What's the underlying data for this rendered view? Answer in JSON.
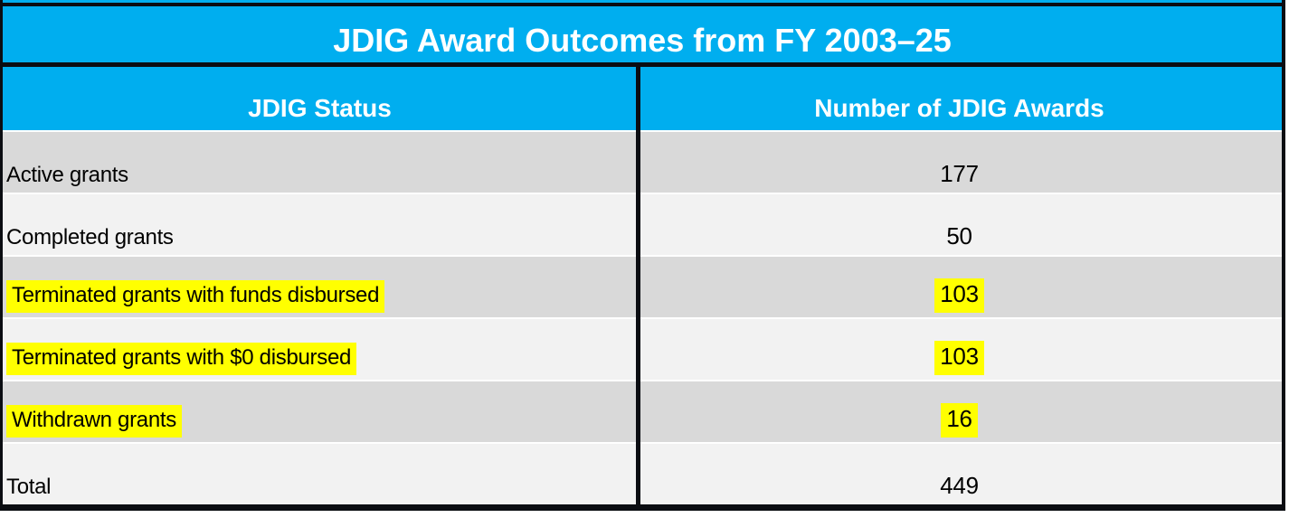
{
  "table": {
    "title": "JDIG Award Outcomes from FY 2003–25",
    "columns": [
      "JDIG Status",
      "Number of JDIG Awards"
    ],
    "rows": [
      {
        "status": "Active grants",
        "count": "177",
        "highlighted": false
      },
      {
        "status": "Completed grants",
        "count": "50",
        "highlighted": false
      },
      {
        "status": "Terminated grants with funds disbursed",
        "count": "103",
        "highlighted": true
      },
      {
        "status": "Terminated grants with $0 disbursed",
        "count": "103",
        "highlighted": true
      },
      {
        "status": "Withdrawn grants",
        "count": "16",
        "highlighted": true
      },
      {
        "status": "Total",
        "count": "449",
        "highlighted": false
      }
    ]
  },
  "colors": {
    "header_blue": "#00AEEF",
    "row_dark": "#D9D9D9",
    "row_light": "#F2F2F2",
    "highlight_yellow": "#FFFF00",
    "border_black": "#0B0D12",
    "header_text": "#FFFFFF",
    "body_text": "#000000"
  },
  "chart_data": {
    "type": "table",
    "title": "JDIG Award Outcomes from FY 2003–25",
    "columns": [
      "JDIG Status",
      "Number of JDIG Awards"
    ],
    "rows": [
      [
        "Active grants",
        177
      ],
      [
        "Completed grants",
        50
      ],
      [
        "Terminated grants with funds disbursed",
        103
      ],
      [
        "Terminated grants with $0 disbursed",
        103
      ],
      [
        "Withdrawn grants",
        16
      ],
      [
        "Total",
        449
      ]
    ],
    "highlighted_rows": [
      "Terminated grants with funds disbursed",
      "Terminated grants with $0 disbursed",
      "Withdrawn grants"
    ],
    "layout": "title row and column header row on blue background; body rows alternate gray shades; highlighted cells use yellow marker background"
  }
}
